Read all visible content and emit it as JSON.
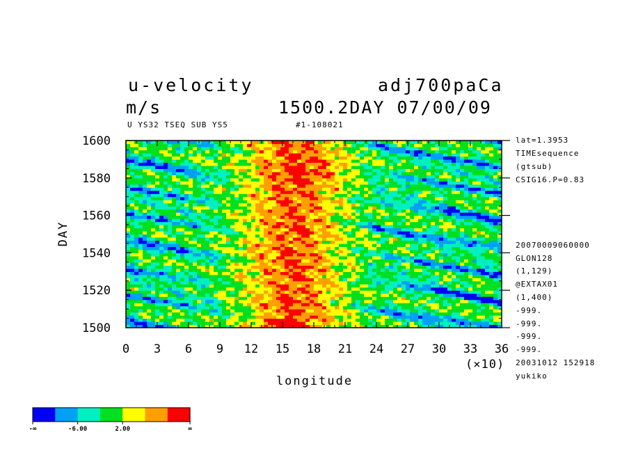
{
  "header": {
    "variable": "u-velocity",
    "units": "m/s",
    "experiment": "adj700paCa",
    "time": "1500.2DAY 07/00/09",
    "desc_left": "U YS32 TSEQ SUB YS5",
    "desc_right": "#1-108021"
  },
  "side_info": [
    "lat=1.3953",
    "TIMEsequence",
    "(gtsub)",
    "CSIG16.P=0.83",
    "20070009060000",
    "GLON128",
    "(1,129)",
    "@EXTAX01",
    "(1,400)",
    "-999.",
    "-999.",
    "-999.",
    "-999.",
    "20031012 152918",
    "yukiko"
  ],
  "colorbar": {
    "colors": [
      "#0000f5",
      "#00a0f5",
      "#00f0c0",
      "#00e020",
      "#ffff00",
      "#ffa000",
      "#ff0000"
    ],
    "labels": [
      "-∞",
      "-6.00",
      "2.00",
      "∞"
    ]
  },
  "chart_data": {
    "type": "heatmap",
    "title": "u-velocity",
    "xlabel": "longitude",
    "ylabel": "DAY",
    "x_unit_label": "(×10)",
    "xlim": [
      0,
      36
    ],
    "ylim": [
      1500,
      1600
    ],
    "x_ticks": [
      "0",
      "3",
      "6",
      "9",
      "12",
      "15",
      "18",
      "21",
      "24",
      "27",
      "30",
      "33",
      "36"
    ],
    "y_ticks": [
      "1500",
      "1520",
      "1540",
      "1560",
      "1580",
      "1600"
    ],
    "levels": [
      "-∞",
      "-6.00",
      "2.00",
      "∞"
    ],
    "n_colors": 7,
    "pattern": "westward-propagating negative (blue) bands at 0-9 and 24-36 (x10); strongest positive (red) anomalies near longitude 12-21 (x10), peak near 15 (x10) at day 1500-1505 and around days 1540-1590"
  }
}
